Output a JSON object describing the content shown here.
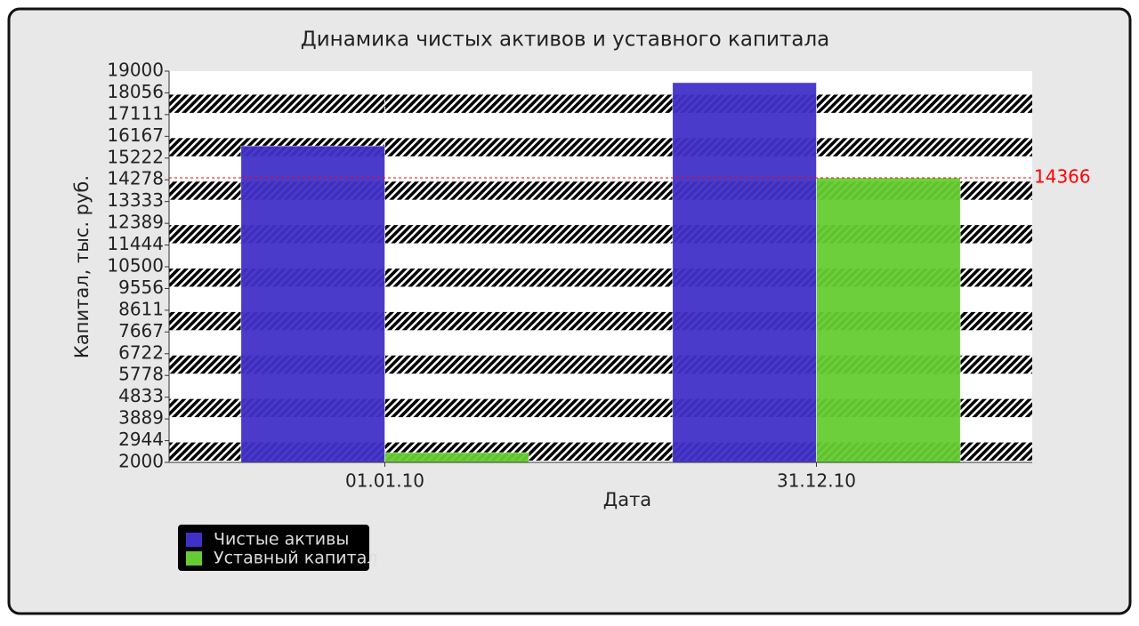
{
  "chart_data": {
    "type": "bar",
    "title": "Динамика чистых активов и уставного капитала",
    "x_label": "Дата",
    "y_label": "Капитал, тыс. руб.",
    "categories": [
      "01.01.10",
      "31.12.10"
    ],
    "series": [
      {
        "name": "Чистые активы",
        "color": "#4030c8",
        "values": [
          15750,
          18500
        ]
      },
      {
        "name": "Уставный капитал",
        "color": "#66cc33",
        "values": [
          2425,
          14366
        ]
      }
    ],
    "ylim": [
      2000,
      19000
    ],
    "yticks": [
      2000,
      2944,
      3889,
      4833,
      5778,
      6722,
      7667,
      8611,
      9556,
      10500,
      11444,
      12389,
      13333,
      14278,
      15222,
      16167,
      17111,
      18056,
      19000
    ],
    "grid": true,
    "reference_line": {
      "value": 14366,
      "color": "#ff0000"
    },
    "legend": "bottom-left"
  }
}
